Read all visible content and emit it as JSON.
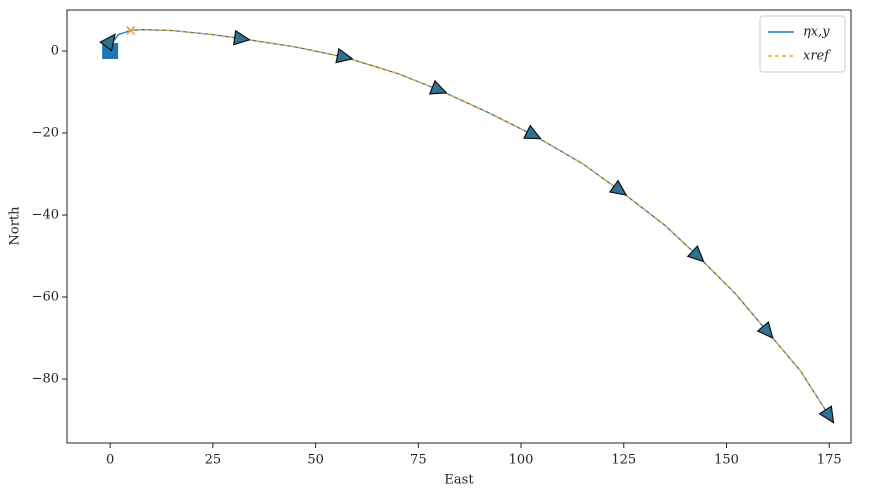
{
  "chart_data": {
    "type": "line",
    "xlabel": "East",
    "ylabel": "North",
    "xlim": [
      -10.5,
      180.3
    ],
    "ylim": [
      -95.6,
      10
    ],
    "xticks": [
      0,
      25,
      50,
      75,
      100,
      125,
      150,
      175
    ],
    "yticks": [
      {
        "value": -80,
        "label": "−80"
      },
      {
        "value": -60,
        "label": "−60"
      },
      {
        "value": -40,
        "label": "−40"
      },
      {
        "value": -20,
        "label": "−20"
      },
      0
    ],
    "legend": "upper right",
    "series": [
      {
        "name": "ηx,y",
        "color": "#1f77b4",
        "dash": false,
        "x": [
          0,
          0.5,
          2,
          5,
          8,
          15,
          25,
          32,
          45,
          57,
          70,
          80,
          92,
          103,
          115,
          124,
          135,
          143,
          152,
          160,
          168,
          175
        ],
        "y": [
          0,
          2,
          4,
          5,
          5.2,
          5,
          4,
          3,
          1,
          -1.5,
          -5.5,
          -9.5,
          -15,
          -20.5,
          -27.5,
          -34,
          -42.5,
          -50,
          -59,
          -68.5,
          -78,
          -89
        ]
      },
      {
        "name": "xref",
        "color": "#f5a623",
        "dash": true,
        "x": [
          5,
          8,
          15,
          25,
          32,
          45,
          57,
          70,
          80,
          92,
          103,
          115,
          124,
          135,
          143,
          152,
          160,
          168,
          175
        ],
        "y": [
          5,
          5.2,
          5,
          4,
          3,
          1,
          -1.5,
          -5.5,
          -9.5,
          -15,
          -20.5,
          -27.5,
          -34,
          -42.5,
          -50,
          -59,
          -68.5,
          -78,
          -89
        ]
      }
    ],
    "start": {
      "x": 0,
      "y": 0,
      "color": "#1f77b4"
    },
    "target": {
      "x": 5,
      "y": 5,
      "color": "#e8a33a"
    },
    "heading_markers": {
      "color": "#2f7391",
      "x": [
        0,
        32,
        57,
        80,
        103,
        124,
        143,
        160,
        175
      ],
      "y": [
        2.5,
        3,
        -1.5,
        -9.5,
        -20.5,
        -34,
        -50,
        -68.5,
        -89
      ]
    }
  }
}
